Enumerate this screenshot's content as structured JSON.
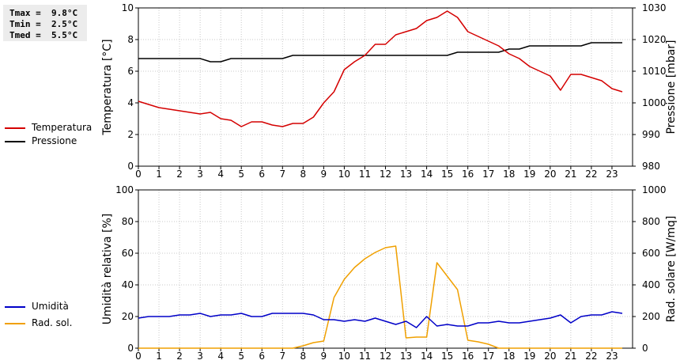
{
  "stats": {
    "tmax": "Tmax =  9.8°C",
    "tmin": "Tmin =  2.5°C",
    "tmed": "Tmed =  5.5°C"
  },
  "legend": {
    "top": [
      {
        "label": "Temperatura",
        "color": "#d40000"
      },
      {
        "label": "Pressione",
        "color": "#000000"
      }
    ],
    "bottom": [
      {
        "label": "Umidità",
        "color": "#0000c8"
      },
      {
        "label": "Rad. sol.",
        "color": "#f0a000"
      }
    ]
  },
  "chart_data": [
    {
      "type": "line",
      "ylabel": "Temperatura [°C]",
      "y2label": "Pressione [mbar]",
      "xlim": [
        0,
        24
      ],
      "ylim": [
        0,
        10
      ],
      "y2lim": [
        980,
        1030
      ],
      "xticks": [
        "0",
        "1",
        "2",
        "3",
        "4",
        "5",
        "6",
        "7",
        "8",
        "9",
        "10",
        "11",
        "12",
        "13",
        "14",
        "15",
        "16",
        "17",
        "18",
        "19",
        "20",
        "21",
        "22",
        "23"
      ],
      "yticks": [
        "0",
        "2",
        "4",
        "6",
        "8",
        "10"
      ],
      "y2ticks": [
        "980",
        "990",
        "1000",
        "1010",
        "1020",
        "1030"
      ],
      "grid": true,
      "series": [
        {
          "name": "Temperatura",
          "axis": "left",
          "color": "#d40000",
          "x": [
            0,
            0.5,
            1,
            1.5,
            2,
            2.5,
            3,
            3.5,
            4,
            4.5,
            5,
            5.5,
            6,
            6.5,
            7,
            7.5,
            8,
            8.5,
            9,
            9.5,
            10,
            10.5,
            11,
            11.5,
            12,
            12.5,
            13,
            13.5,
            14,
            14.5,
            15,
            15.5,
            16,
            16.5,
            17,
            17.5,
            18,
            18.5,
            19,
            19.5,
            20,
            20.5,
            21,
            21.5,
            22,
            22.5,
            23,
            23.5
          ],
          "y": [
            4.1,
            3.9,
            3.7,
            3.6,
            3.5,
            3.4,
            3.3,
            3.4,
            3.0,
            2.9,
            2.5,
            2.8,
            2.8,
            2.6,
            2.5,
            2.7,
            2.7,
            3.1,
            4.0,
            4.7,
            6.1,
            6.6,
            7.0,
            7.7,
            7.7,
            8.3,
            8.5,
            8.7,
            9.2,
            9.4,
            9.8,
            9.4,
            8.5,
            8.2,
            7.9,
            7.6,
            7.1,
            6.8,
            6.3,
            6.0,
            5.7,
            4.8,
            5.8,
            5.8,
            5.6,
            5.4,
            4.9,
            4.7
          ]
        },
        {
          "name": "Pressione",
          "axis": "right",
          "color": "#000000",
          "x": [
            0,
            3,
            3.5,
            4,
            4.5,
            7,
            7.5,
            15,
            15.5,
            17,
            17.5,
            18,
            18.5,
            19,
            21.5,
            22,
            23.5
          ],
          "y": [
            1014,
            1014,
            1013,
            1013,
            1014,
            1014,
            1015,
            1015,
            1016,
            1016,
            1016,
            1017,
            1017,
            1018,
            1018,
            1019,
            1019
          ]
        }
      ]
    },
    {
      "type": "line",
      "ylabel": "Umidità relativa [%]",
      "y2label": "Rad. solare [W/mq]",
      "xlim": [
        0,
        24
      ],
      "ylim": [
        0,
        100
      ],
      "y2lim": [
        0,
        1000
      ],
      "xticks": [
        "0",
        "1",
        "2",
        "3",
        "4",
        "5",
        "6",
        "7",
        "8",
        "9",
        "10",
        "11",
        "12",
        "13",
        "14",
        "15",
        "16",
        "17",
        "18",
        "19",
        "20",
        "21",
        "22",
        "23"
      ],
      "yticks": [
        "0",
        "20",
        "40",
        "60",
        "80",
        "100"
      ],
      "y2ticks": [
        "0",
        "200",
        "400",
        "600",
        "800",
        "1000"
      ],
      "grid": true,
      "series": [
        {
          "name": "Umidità",
          "axis": "left",
          "color": "#0000c8",
          "x": [
            0,
            0.5,
            1,
            1.5,
            2,
            2.5,
            3,
            3.5,
            4,
            4.5,
            5,
            5.5,
            6,
            6.5,
            7,
            7.5,
            8,
            8.5,
            9,
            9.5,
            10,
            10.5,
            11,
            11.5,
            12,
            12.5,
            13,
            13.5,
            14,
            14.5,
            15,
            15.5,
            16,
            16.5,
            17,
            17.5,
            18,
            18.5,
            19,
            19.5,
            20,
            20.5,
            21,
            21.5,
            22,
            22.5,
            23,
            23.5
          ],
          "y": [
            19,
            20,
            20,
            20,
            21,
            21,
            22,
            20,
            21,
            21,
            22,
            20,
            20,
            22,
            22,
            22,
            22,
            21,
            18,
            18,
            17,
            18,
            17,
            19,
            17,
            15,
            17,
            13,
            20,
            14,
            15,
            14,
            14,
            16,
            16,
            17,
            16,
            16,
            17,
            18,
            19,
            21,
            16,
            20,
            21,
            21,
            23,
            22
          ]
        },
        {
          "name": "Rad. sol.",
          "axis": "right",
          "color": "#f0a000",
          "x": [
            0,
            7.5,
            8,
            8.5,
            9,
            9.5,
            10,
            10.5,
            11,
            11.5,
            12,
            12.5,
            13,
            13.5,
            14,
            14.5,
            15,
            15.5,
            16,
            16.5,
            17,
            17.5,
            18,
            23.5
          ],
          "y": [
            0,
            0,
            15,
            35,
            45,
            320,
            435,
            510,
            565,
            605,
            635,
            645,
            65,
            70,
            70,
            540,
            455,
            370,
            50,
            40,
            25,
            0,
            0,
            0
          ]
        }
      ]
    }
  ]
}
